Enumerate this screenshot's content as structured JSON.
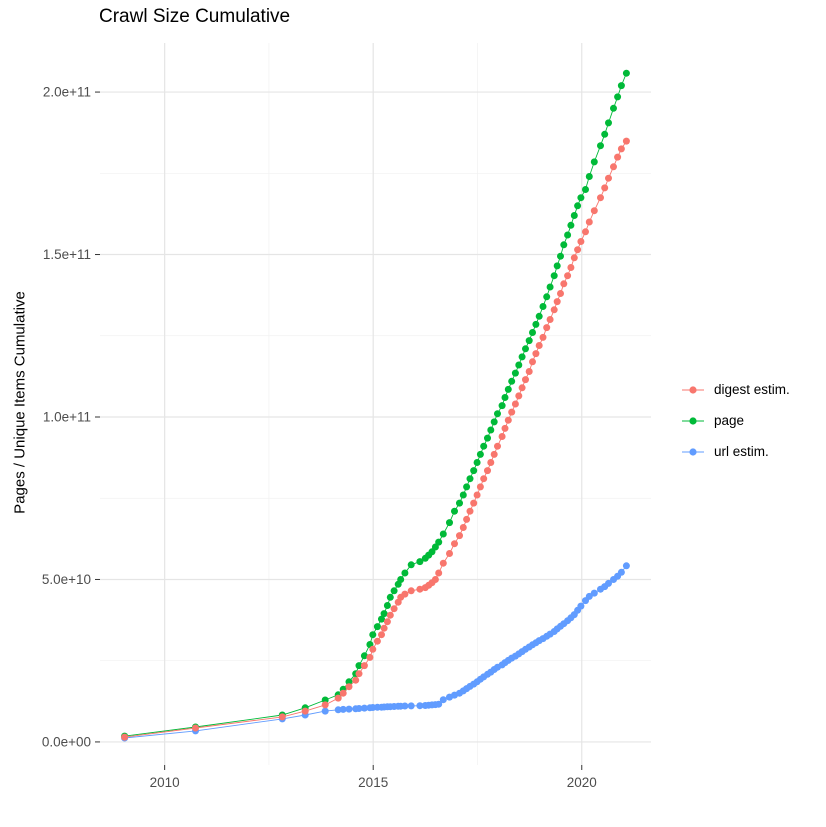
{
  "chart": {
    "title": "Crawl Size Cumulative",
    "y_axis_label": "Pages / Unique Items Cumulative"
  },
  "legend": {
    "position": "right",
    "items": [
      {
        "label": "digest estim.",
        "color": "#F8766D"
      },
      {
        "label": "page",
        "color": "#00BA38"
      },
      {
        "label": "url estim.",
        "color": "#619CFF"
      }
    ]
  },
  "colors": {
    "background": "#FFFFFF",
    "grid_major": "#E5E5E5",
    "grid_minor": "#F1F1F1",
    "tick_mark": "#333333",
    "tick_label": "#4D4D4D",
    "series_digest": "#F8766D",
    "series_page": "#00BA38",
    "series_url": "#619CFF"
  },
  "chart_data": {
    "type": "line",
    "title": "Crawl Size Cumulative",
    "xlabel": "",
    "ylabel": "Pages / Unique Items Cumulative",
    "grid": true,
    "legend_position": "right",
    "x_domain": [
      2008.45,
      2021.66
    ],
    "y_domain": [
      -7100000000.0,
      215100000000.0
    ],
    "x_ticks": {
      "values": [
        2010,
        2015,
        2020
      ],
      "labels": [
        "2010",
        "2015",
        "2020"
      ]
    },
    "x_minor": [
      2012.5,
      2017.5
    ],
    "y_ticks": {
      "values": [
        0,
        50000000000.0,
        100000000000.0,
        150000000000.0,
        200000000000.0
      ],
      "labels": [
        "0.0e+00",
        "5.0e+10",
        "1.0e+11",
        "1.5e+11",
        "2.0e+11"
      ]
    },
    "y_minor": [
      25000000000.0,
      75000000000.0,
      125000000000.0,
      175000000000.0
    ],
    "x": [
      2009.04,
      2010.74,
      2012.82,
      2013.37,
      2013.85,
      2014.16,
      2014.28,
      2014.42,
      2014.58,
      2014.66,
      2014.79,
      2014.92,
      2014.99,
      2015.1,
      2015.2,
      2015.26,
      2015.34,
      2015.41,
      2015.5,
      2015.6,
      2015.66,
      2015.76,
      2015.91,
      2016.12,
      2016.25,
      2016.33,
      2016.41,
      2016.49,
      2016.57,
      2016.68,
      2016.83,
      2016.95,
      2017.07,
      2017.16,
      2017.24,
      2017.32,
      2017.41,
      2017.49,
      2017.57,
      2017.65,
      2017.74,
      2017.82,
      2017.9,
      2017.98,
      2018.09,
      2018.16,
      2018.24,
      2018.32,
      2018.41,
      2018.49,
      2018.57,
      2018.65,
      2018.74,
      2018.82,
      2018.9,
      2018.98,
      2019.07,
      2019.16,
      2019.24,
      2019.34,
      2019.41,
      2019.49,
      2019.57,
      2019.66,
      2019.74,
      2019.82,
      2019.9,
      2019.98,
      2020.09,
      2020.18,
      2020.3,
      2020.45,
      2020.55,
      2020.64,
      2020.76,
      2020.86,
      2020.95,
      2021.07
    ],
    "series": [
      {
        "name": "digest estim.",
        "color": "#F8766D",
        "values": [
          1500000000.0,
          4300000000.0,
          7700000000.0,
          9500000000.0,
          11400000000.0,
          13500000000.0,
          15000000000.0,
          17000000000.0,
          19000000000.0,
          21000000000.0,
          23500000000.0,
          26000000000.0,
          28500000000.0,
          31000000000.0,
          33000000000.0,
          35000000000.0,
          37000000000.0,
          39000000000.0,
          41000000000.0,
          43000000000.0,
          44500000000.0,
          45500000000.0,
          46500000000.0,
          47000000000.0,
          47500000000.0,
          48200000000.0,
          49000000000.0,
          50000000000.0,
          52000000000.0,
          55000000000.0,
          58000000000.0,
          61000000000.0,
          63500000000.0,
          66000000000.0,
          68500000000.0,
          71000000000.0,
          73500000000.0,
          76000000000.0,
          78500000000.0,
          81000000000.0,
          83500000000.0,
          86000000000.0,
          88500000000.0,
          91000000000.0,
          94000000000.0,
          96500000000.0,
          99000000000.0,
          101500000000.0,
          104000000000.0,
          106500000000.0,
          109000000000.0,
          111500000000.0,
          114000000000.0,
          117000000000.0,
          119500000000.0,
          122000000000.0,
          124500000000.0,
          127500000000.0,
          130000000000.0,
          133000000000.0,
          135500000000.0,
          138000000000.0,
          141000000000.0,
          143500000000.0,
          146000000000.0,
          149000000000.0,
          151500000000.0,
          154000000000.0,
          157000000000.0,
          160000000000.0,
          163500000000.0,
          167500000000.0,
          170500000000.0,
          173500000000.0,
          177000000000.0,
          180000000000.0,
          182500000000.0,
          184900000000.0
        ]
      },
      {
        "name": "page",
        "color": "#00BA38",
        "values": [
          1800000000.0,
          4600000000.0,
          8300000000.0,
          10500000000.0,
          12900000000.0,
          14500000000.0,
          16200000000.0,
          18500000000.0,
          21000000000.0,
          23500000000.0,
          26500000000.0,
          30000000000.0,
          33000000000.0,
          35500000000.0,
          37800000000.0,
          39500000000.0,
          42000000000.0,
          44500000000.0,
          46500000000.0,
          48500000000.0,
          50000000000.0,
          52000000000.0,
          54500000000.0,
          55500000000.0,
          56500000000.0,
          57500000000.0,
          58500000000.0,
          60000000000.0,
          61500000000.0,
          64000000000.0,
          67500000000.0,
          71000000000.0,
          73500000000.0,
          76000000000.0,
          78500000000.0,
          81000000000.0,
          83500000000.0,
          86000000000.0,
          88500000000.0,
          91000000000.0,
          93500000000.0,
          96000000000.0,
          98500000000.0,
          101000000000.0,
          103500000000.0,
          106000000000.0,
          108500000000.0,
          111000000000.0,
          113500000000.0,
          116000000000.0,
          118500000000.0,
          121000000000.0,
          123500000000.0,
          126000000000.0,
          128500000000.0,
          131000000000.0,
          134000000000.0,
          137000000000.0,
          140000000000.0,
          143500000000.0,
          146500000000.0,
          149500000000.0,
          153000000000.0,
          156000000000.0,
          159000000000.0,
          162000000000.0,
          165000000000.0,
          167500000000.0,
          170000000000.0,
          174000000000.0,
          178500000000.0,
          183500000000.0,
          187000000000.0,
          190500000000.0,
          195000000000.0,
          198500000000.0,
          202000000000.0,
          205800000000.0
        ]
      },
      {
        "name": "url estim.",
        "color": "#619CFF",
        "values": [
          1200000000.0,
          3400000000.0,
          7100000000.0,
          8300000000.0,
          9500000000.0,
          9900000000.0,
          10000000000.0,
          10100000000.0,
          10200000000.0,
          10300000000.0,
          10400000000.0,
          10500000000.0,
          10600000000.0,
          10650000000.0,
          10700000000.0,
          10750000000.0,
          10800000000.0,
          10850000000.0,
          10900000000.0,
          10950000000.0,
          11000000000.0,
          11050000000.0,
          11100000000.0,
          11150000000.0,
          11200000000.0,
          11300000000.0,
          11400000000.0,
          11500000000.0,
          11600000000.0,
          13000000000.0,
          13800000000.0,
          14400000000.0,
          15000000000.0,
          15700000000.0,
          16400000000.0,
          17100000000.0,
          17800000000.0,
          18500000000.0,
          19300000000.0,
          20000000000.0,
          20800000000.0,
          21500000000.0,
          22300000000.0,
          23000000000.0,
          23700000000.0,
          24400000000.0,
          25100000000.0,
          25800000000.0,
          26400000000.0,
          27100000000.0,
          27800000000.0,
          28500000000.0,
          29200000000.0,
          29900000000.0,
          30500000000.0,
          31200000000.0,
          31800000000.0,
          32500000000.0,
          33200000000.0,
          34000000000.0,
          34800000000.0,
          35600000000.0,
          36400000000.0,
          37300000000.0,
          38200000000.0,
          39200000000.0,
          40500000000.0,
          41800000000.0,
          43500000000.0,
          44800000000.0,
          45800000000.0,
          47000000000.0,
          47800000000.0,
          48800000000.0,
          50000000000.0,
          51000000000.0,
          52200000000.0,
          54200000000.0
        ]
      }
    ],
    "draw_order": [
      "url estim.",
      "page",
      "digest estim."
    ]
  }
}
